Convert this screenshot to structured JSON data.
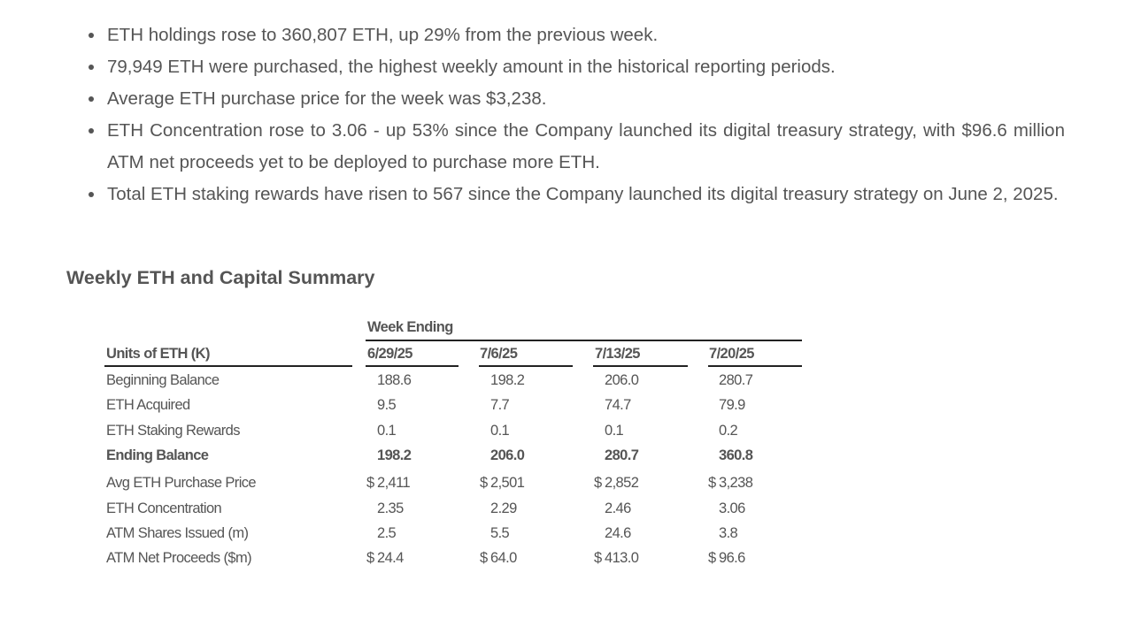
{
  "bullets": [
    "ETH holdings rose to 360,807 ETH, up 29% from the previous week.",
    "79,949 ETH were purchased, the highest weekly amount in the historical reporting periods.",
    "Average ETH purchase price for the week was $3,238.",
    "ETH Concentration rose to 3.06 - up 53% since the Company launched its digital treasury strategy, with $96.6 million ATM net proceeds yet to be deployed to purchase more ETH.",
    "Total ETH staking rewards have risen to 567 since the Company launched its digital treasury strategy on June 2, 2025."
  ],
  "section_title": "Weekly ETH and Capital Summary",
  "table": {
    "group_header": "Week Ending",
    "row_header_label": "Units of ETH (K)",
    "columns": [
      "6/29/25",
      "7/6/25",
      "7/13/25",
      "7/20/25"
    ],
    "rows": [
      {
        "label": "Beginning Balance",
        "values": [
          "188.6",
          "198.2",
          "206.0",
          "280.7"
        ]
      },
      {
        "label": "ETH Acquired",
        "values": [
          "9.5",
          "7.7",
          "74.7",
          "79.9"
        ]
      },
      {
        "label": "ETH Staking Rewards",
        "values": [
          "0.1",
          "0.1",
          "0.1",
          "0.2"
        ]
      },
      {
        "label": "Ending Balance",
        "values": [
          "198.2",
          "206.0",
          "280.7",
          "360.8"
        ]
      },
      {
        "label": "Avg ETH Purchase Price",
        "currency": "$",
        "values": [
          "2,411",
          "2,501",
          "2,852",
          "3,238"
        ]
      },
      {
        "label": "ETH Concentration",
        "values": [
          "2.35",
          "2.29",
          "2.46",
          "3.06"
        ]
      },
      {
        "label": "ATM Shares Issued (m)",
        "values": [
          "2.5",
          "5.5",
          "24.6",
          "3.8"
        ]
      },
      {
        "label": "ATM Net Proceeds ($m)",
        "currency": "$",
        "values": [
          "24.4",
          "64.0",
          "413.0",
          "96.6"
        ]
      }
    ]
  }
}
